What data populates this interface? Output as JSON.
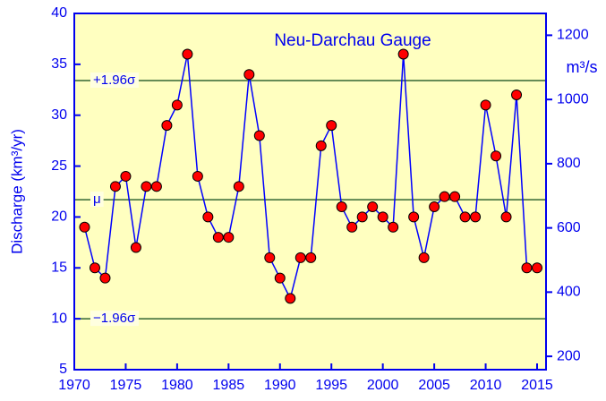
{
  "chart_data": {
    "type": "line",
    "title": "Neu-Darchau Gauge",
    "y_label": "Discharge (km³/yr)",
    "y2_label": "m³/s",
    "x": [
      1971,
      1972,
      1973,
      1974,
      1975,
      1976,
      1977,
      1978,
      1979,
      1980,
      1981,
      1982,
      1983,
      1984,
      1985,
      1986,
      1987,
      1988,
      1989,
      1990,
      1991,
      1992,
      1993,
      1994,
      1995,
      1996,
      1997,
      1998,
      1999,
      2000,
      2001,
      2002,
      2003,
      2004,
      2005,
      2006,
      2007,
      2008,
      2009,
      2010,
      2011,
      2012,
      2013,
      2014,
      2015
    ],
    "series": [
      {
        "color": "#0000ff",
        "marker_color": "#ff0000",
        "values": [
          19,
          15,
          14,
          23,
          24,
          17,
          23,
          23,
          29,
          31,
          36,
          24,
          20,
          18,
          18,
          23,
          34,
          28,
          16,
          14,
          12,
          16,
          16,
          27,
          29,
          21,
          19,
          20,
          21,
          20,
          19,
          36,
          20,
          16,
          21,
          22,
          22,
          20,
          20,
          31,
          26,
          20,
          32,
          15,
          15
        ]
      }
    ],
    "xlim": [
      1970,
      2015.87
    ],
    "xticks": [
      1970,
      1975,
      1980,
      1985,
      1990,
      1995,
      2000,
      2005,
      2010,
      2015
    ],
    "ylim": [
      5,
      40
    ],
    "yticks": [
      5,
      10,
      15,
      20,
      25,
      30,
      35,
      40
    ],
    "y2lim": [
      158.5,
      1268
    ],
    "y2ticks": [
      200,
      400,
      600,
      800,
      1000,
      1200
    ],
    "ref_lines": [
      {
        "value": 33.4,
        "label": "+1.96σ"
      },
      {
        "value": 21.7,
        "label": "μ"
      },
      {
        "value": 10.0,
        "label": "−1.96σ"
      }
    ],
    "ref_color": "#336633",
    "background": "#ffffc0",
    "axis_color": "#0000ee"
  }
}
